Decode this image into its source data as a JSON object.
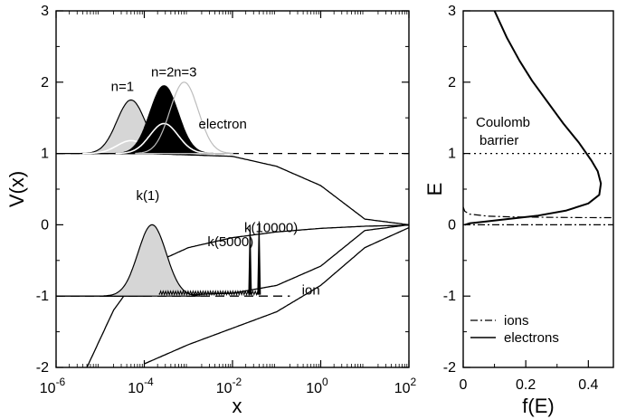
{
  "chart_data": [
    {
      "type": "line",
      "xlabel": "x",
      "ylabel": "V(x)",
      "xscale": "log",
      "xlim": [
        1e-06,
        100
      ],
      "ylim": [
        -2,
        3
      ],
      "x_ticks": [
        1e-06,
        0.0001,
        0.01,
        1,
        100
      ],
      "x_tick_labels": [
        {
          "base": "10",
          "exp": "-6"
        },
        {
          "base": "10",
          "exp": "-4"
        },
        {
          "base": "10",
          "exp": "-2"
        },
        {
          "base": "10",
          "exp": "0"
        },
        {
          "base": "10",
          "exp": "2"
        }
      ],
      "y_ticks": [
        -2,
        -1,
        0,
        1,
        2,
        3
      ],
      "y_tick_labels": [
        "-2",
        "-1",
        "0",
        "1",
        "2",
        "3"
      ],
      "series": [
        {
          "role": "electron-potential",
          "x": [
            1e-06,
            0.0001,
            0.01,
            0.1,
            1,
            10,
            100
          ],
          "y": [
            1.0,
            1.0,
            0.96,
            0.82,
            0.55,
            0.08,
            0.0
          ]
        },
        {
          "role": "ion-potential",
          "x": [
            1e-06,
            0.0001,
            0.01,
            0.1,
            1,
            10,
            100
          ],
          "y": [
            -1.0,
            -1.0,
            -0.96,
            -0.85,
            -0.58,
            -0.08,
            0.0
          ]
        },
        {
          "role": "electron-barrier-dashed",
          "x": [
            1e-06,
            100
          ],
          "y": [
            1,
            1
          ]
        },
        {
          "role": "ion-barrier-dashed",
          "x": [
            1e-06,
            0.2
          ],
          "y": [
            -1,
            -1
          ]
        },
        {
          "role": "coulomb-attractive",
          "x": [
            5e-06,
            2e-05,
            0.0001,
            0.001,
            0.01,
            0.1,
            1,
            10,
            100
          ],
          "y": [
            -2,
            -1.2,
            -0.6,
            -0.32,
            -0.18,
            -0.1,
            -0.05,
            -0.02,
            -0.005
          ]
        },
        {
          "role": "coulomb-repulsive",
          "x": [
            0.0001,
            0.001,
            0.01,
            0.1,
            1,
            10,
            100
          ],
          "y": [
            -1.95,
            -1.68,
            -1.45,
            -1.22,
            -0.85,
            -0.32,
            -0.04
          ]
        }
      ],
      "wavepackets": [
        {
          "label": "n=1",
          "center_x": 5e-05,
          "peak": 1.75,
          "base": 1.0,
          "fill": "#d6d6d6",
          "inner_peak": 1.18
        },
        {
          "label": "n=2",
          "center_x": 0.00028,
          "peak": 1.95,
          "base": 1.0,
          "fill": "#000000",
          "inner_peak": 1.42
        },
        {
          "label": "n=3",
          "center_x": 0.0008,
          "peak": 2.0,
          "base": 1.0,
          "fill": "none",
          "inner_peak": 1.0
        },
        {
          "label": "k(1)",
          "center_x": 0.00015,
          "peak": 0.0,
          "base": -1.0,
          "fill": "#d6d6d6",
          "inner_peak": -1.0
        }
      ],
      "spikes": [
        {
          "label": "k(5000)",
          "x": 0.025,
          "peak": 0.0
        },
        {
          "label": "k(10000)",
          "x": 0.04,
          "peak": 0.05
        }
      ],
      "annotations": [
        "electron",
        "ion"
      ]
    },
    {
      "type": "line",
      "xlabel": "f(E)",
      "ylabel": "E",
      "xlim": [
        0,
        0.48
      ],
      "ylim": [
        -2,
        3
      ],
      "x_ticks": [
        0,
        0.2,
        0.4
      ],
      "x_tick_labels": [
        "0",
        "0.2",
        "0.4"
      ],
      "y_ticks": [
        -2,
        -1,
        0,
        1,
        2,
        3
      ],
      "y_tick_labels": [
        "-2",
        "-1",
        "0",
        "1",
        "2",
        "3"
      ],
      "coulomb_barrier_label": [
        "Coulomb",
        "barrier"
      ],
      "barrier_level": 1,
      "series": [
        {
          "name": "electrons",
          "style": "solid",
          "x": [
            0.1,
            0.14,
            0.18,
            0.22,
            0.27,
            0.32,
            0.37,
            0.41,
            0.43,
            0.44,
            0.435,
            0.4,
            0.33,
            0.24,
            0.14,
            0.06,
            0.02,
            0.005
          ],
          "y": [
            3.0,
            2.62,
            2.3,
            2.02,
            1.72,
            1.42,
            1.15,
            0.9,
            0.75,
            0.58,
            0.42,
            0.3,
            0.2,
            0.13,
            0.08,
            0.04,
            0.02,
            0.0
          ]
        },
        {
          "name": "ions",
          "style": "dashdot",
          "x": [
            0.0,
            0.005,
            0.02,
            0.08,
            0.16,
            0.26,
            0.36,
            0.44,
            0.48
          ],
          "y": [
            0.25,
            0.19,
            0.15,
            0.12,
            0.11,
            0.105,
            0.102,
            0.1,
            0.1
          ]
        },
        {
          "name": "ions-zero",
          "style": "dashdot",
          "x": [
            0.0,
            0.48
          ],
          "y": [
            0.0,
            0.0
          ]
        }
      ],
      "legend": [
        {
          "label": "ions",
          "style": "dashdot"
        },
        {
          "label": "electrons",
          "style": "solid"
        }
      ]
    }
  ]
}
